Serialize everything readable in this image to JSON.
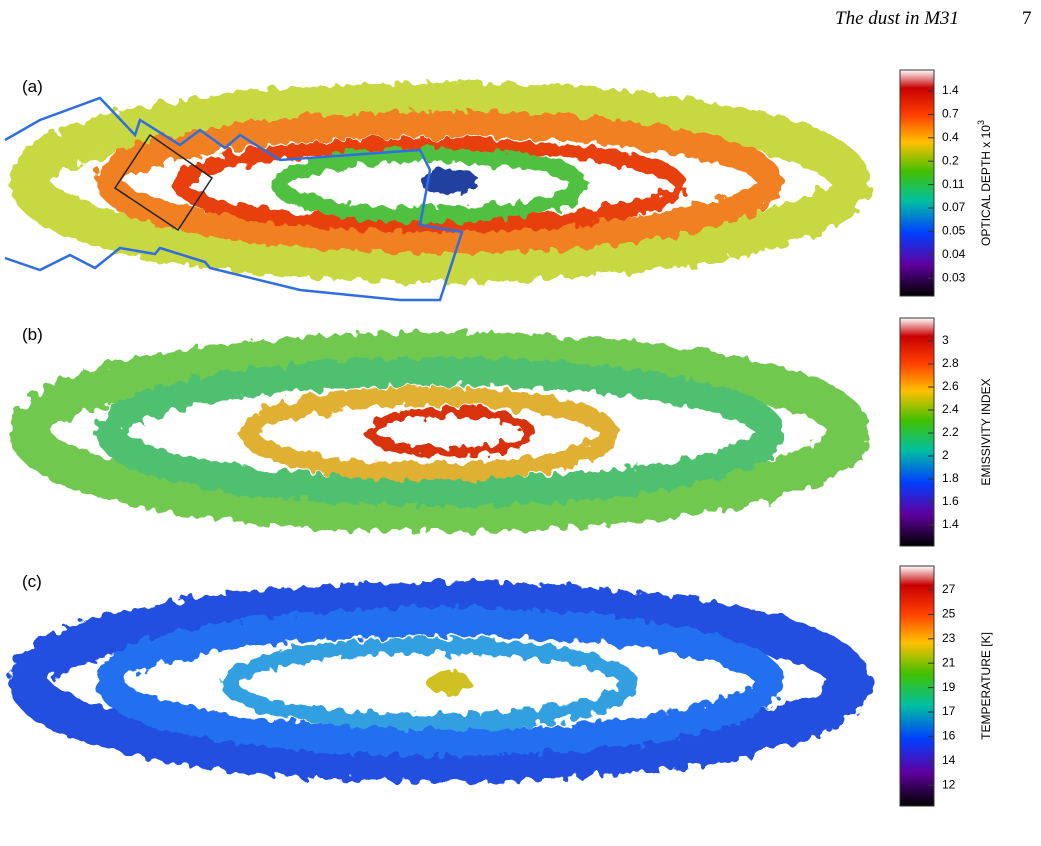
{
  "header": {
    "running_title": "The dust in M31",
    "page_number": "7"
  },
  "panels": [
    {
      "label": "(a)",
      "colorbar": {
        "title": "OPTICAL DEPTH x 10",
        "title_sup": "3",
        "ticks": [
          "1.4",
          "0.7",
          "0.4",
          "0.2",
          "0.11",
          "0.07",
          "0.05",
          "0.04",
          "0.03"
        ]
      }
    },
    {
      "label": "(b)",
      "colorbar": {
        "title": "EMISSIVITY INDEX",
        "ticks": [
          "3",
          "2.8",
          "2.6",
          "2.4",
          "2.2",
          "2",
          "1.8",
          "1.6",
          "1.4"
        ]
      }
    },
    {
      "label": "(c)",
      "colorbar": {
        "title": "TEMPERATURE [K]",
        "ticks": [
          "27",
          "25",
          "23",
          "21",
          "19",
          "17",
          "16",
          "14",
          "12"
        ]
      }
    }
  ]
}
